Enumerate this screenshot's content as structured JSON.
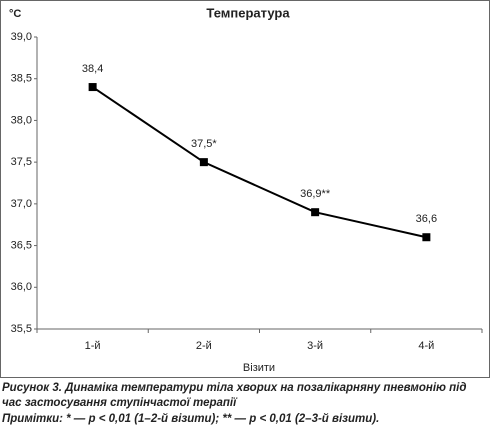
{
  "chart_data": {
    "type": "line",
    "title": "Температура",
    "ylabel": "°C",
    "xlabel": "Візити",
    "categories": [
      "1-й",
      "2-й",
      "3-й",
      "4-й"
    ],
    "values": [
      38.4,
      37.5,
      36.9,
      36.6
    ],
    "value_labels": [
      "38,4",
      "37,5*",
      "36,9**",
      "36,6"
    ],
    "color": "#000000",
    "ylim": [
      35.5,
      39.0
    ],
    "yticks": [
      {
        "value": 35.5,
        "label": "35,5"
      },
      {
        "value": 36.0,
        "label": "36,0"
      },
      {
        "value": 36.5,
        "label": "36,5"
      },
      {
        "value": 37.0,
        "label": "37,0"
      },
      {
        "value": 37.5,
        "label": "37,5"
      },
      {
        "value": 38.0,
        "label": "38,0"
      },
      {
        "value": 38.5,
        "label": "38,5"
      },
      {
        "value": 39.0,
        "label": "39,0"
      }
    ],
    "grid": false
  },
  "caption": {
    "lines": [
      "Рисунок 3. Динаміка температури тіла хворих на позалікарняну пневмонію під",
      "час застосування ступінчастої терапії"
    ],
    "notes": "Примітки: * — p < 0,01 (1–2-й візити); ** — p < 0,01 (2–3-й візити)."
  }
}
